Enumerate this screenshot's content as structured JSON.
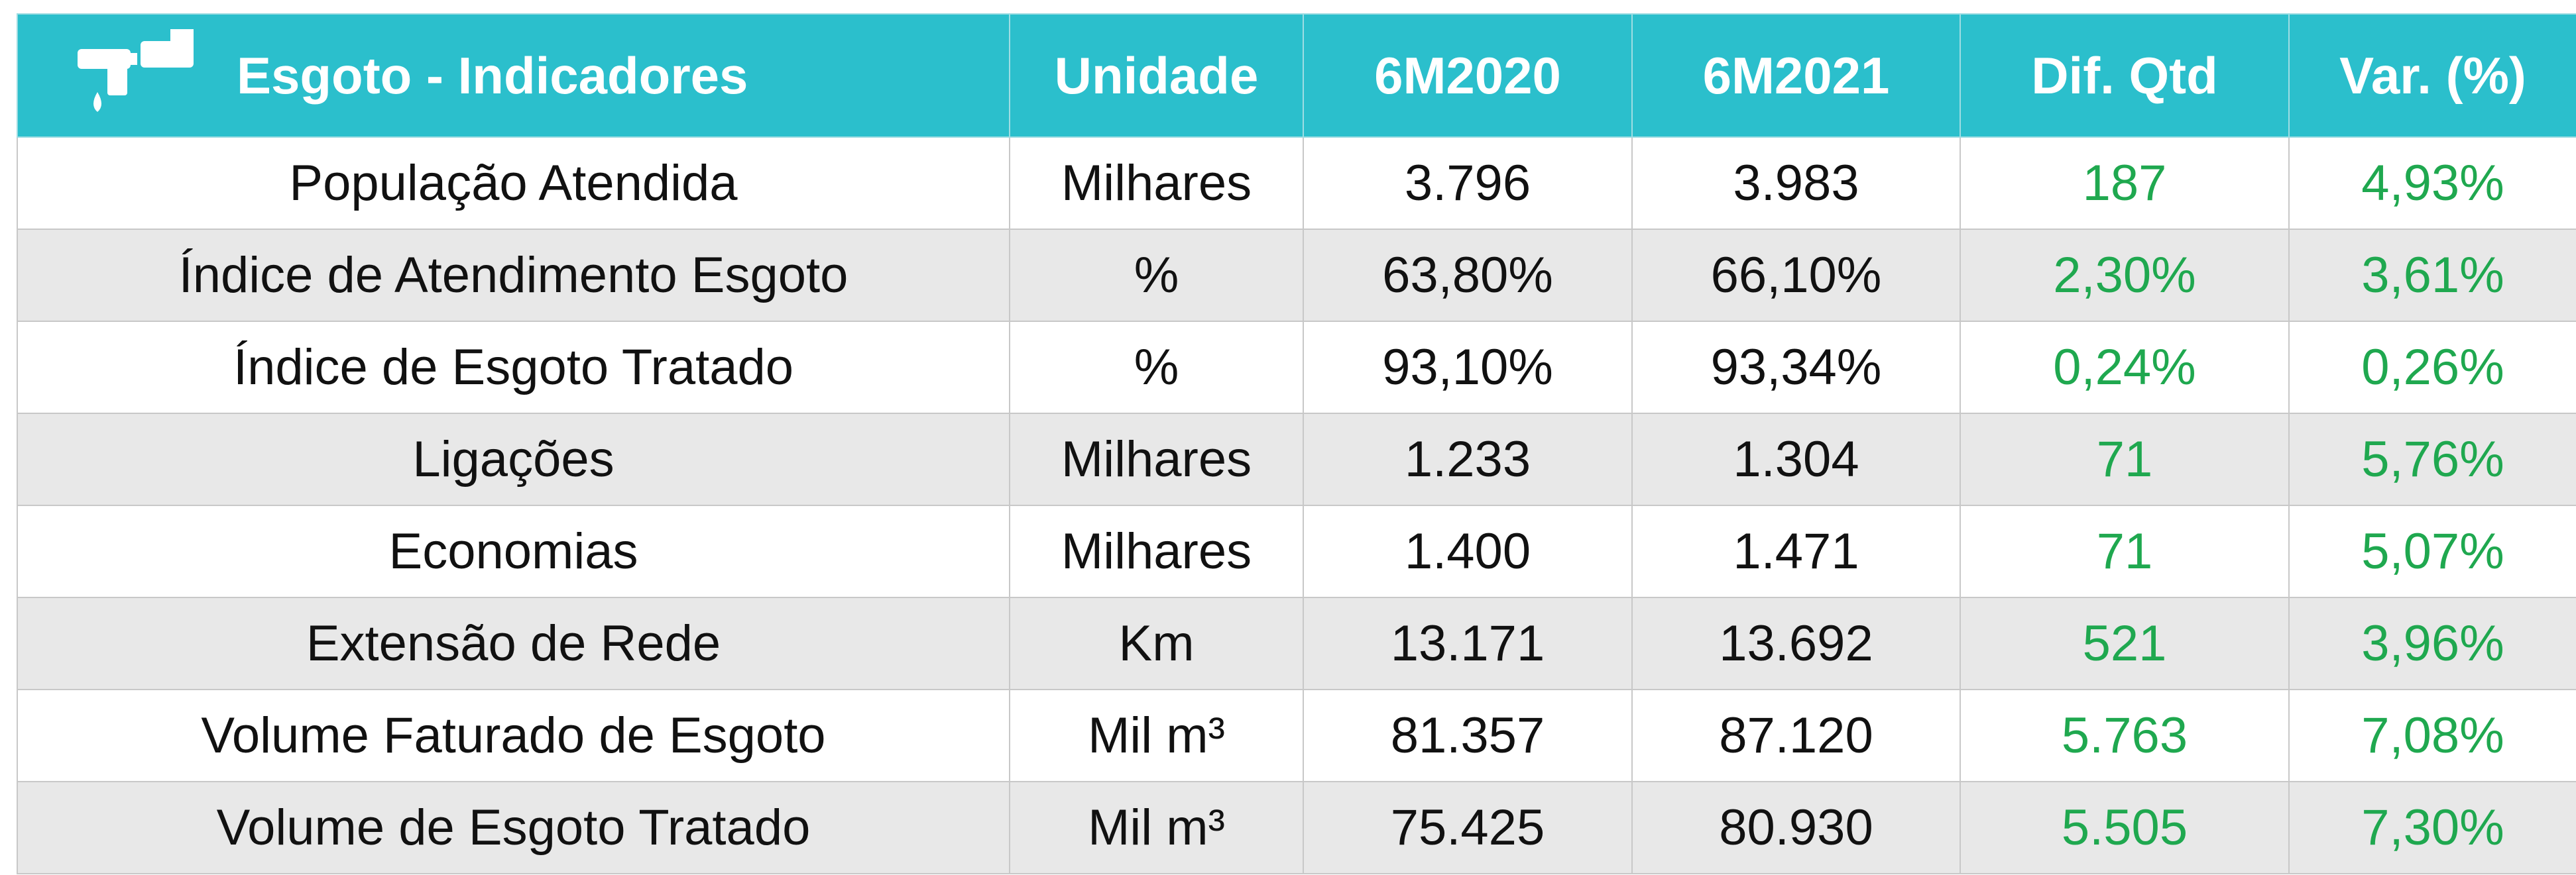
{
  "table": {
    "header": [
      "Esgoto - Indicadores",
      "Unidade",
      "6M2020",
      "6M2021",
      "Dif. Qtd",
      "Var. (%)"
    ],
    "rows": [
      [
        "População Atendida",
        "Milhares",
        "3.796",
        "3.983",
        "187",
        "4,93%"
      ],
      [
        "Índice de Atendimento Esgoto",
        "%",
        "63,80%",
        "66,10%",
        "2,30%",
        "3,61%"
      ],
      [
        "Índice de Esgoto Tratado",
        "%",
        "93,10%",
        "93,34%",
        "0,24%",
        "0,26%"
      ],
      [
        "Ligações",
        "Milhares",
        "1.233",
        "1.304",
        "71",
        "5,76%"
      ],
      [
        "Economias",
        "Milhares",
        "1.400",
        "1.471",
        "71",
        "5,07%"
      ],
      [
        "Extensão de Rede",
        "Km",
        "13.171",
        "13.692",
        "521",
        "3,96%"
      ],
      [
        "Volume Faturado de Esgoto",
        "Mil m³",
        "81.357",
        "87.120",
        "5.763",
        "7,08%"
      ],
      [
        "Volume de Esgoto Tratado",
        "Mil m³",
        "75.425",
        "80.930",
        "5.505",
        "7,30%"
      ]
    ]
  }
}
